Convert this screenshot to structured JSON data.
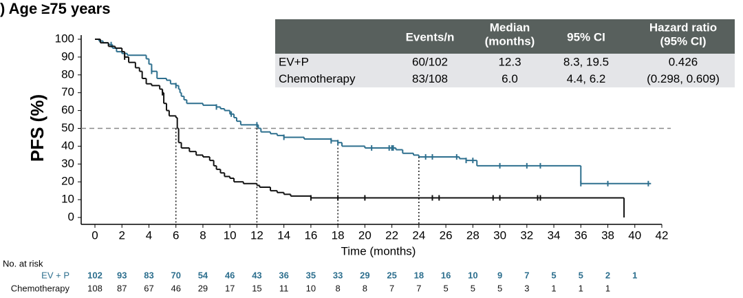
{
  "chart_data": {
    "type": "step",
    "title": ") Age ≥75 years",
    "ylabel": "PFS (%)",
    "xlabel": "Time (months)",
    "xlim": [
      0,
      42
    ],
    "ylim": [
      0,
      100
    ],
    "xticks": [
      0,
      2,
      4,
      6,
      8,
      10,
      12,
      14,
      16,
      18,
      20,
      22,
      24,
      26,
      28,
      30,
      32,
      34,
      36,
      38,
      40,
      42
    ],
    "yticks": [
      0,
      10,
      20,
      30,
      40,
      50,
      60,
      70,
      80,
      90,
      100
    ],
    "hline": 50,
    "vlines": [
      {
        "x": 6,
        "y": 50
      },
      {
        "x": 12,
        "y": 52
      },
      {
        "x": 18,
        "y": 43
      },
      {
        "x": 24,
        "y": 34
      }
    ],
    "series": [
      {
        "color": "#2d6f8e",
        "x": [
          0,
          0.3,
          0.6,
          1,
          1.3,
          1.6,
          2,
          2.4,
          3.8,
          4,
          4.2,
          4.6,
          5.3,
          5.6,
          6,
          6.2,
          6.3,
          6.4,
          6.6,
          6.8,
          8,
          9,
          9.3,
          9.6,
          10,
          10.3,
          10.5,
          10.8,
          12.1,
          12.3,
          13,
          13.5,
          14,
          15.5,
          17.5,
          18,
          18.3,
          20,
          22.3,
          22.8,
          23.6,
          24,
          27,
          27.5,
          28.3,
          36,
          41.2
        ],
        "values": [
          100,
          99,
          98,
          97,
          95,
          93,
          92,
          91,
          89,
          86,
          82,
          78,
          77,
          75,
          74,
          72,
          70,
          68,
          66,
          64,
          63,
          62,
          61,
          60,
          58,
          56,
          54,
          52,
          50,
          48,
          47,
          46,
          45,
          44,
          43,
          42,
          40,
          39,
          38,
          36,
          35,
          34,
          33,
          32,
          29,
          19,
          19
        ],
        "censor_x": [
          1.2,
          4.2,
          6,
          9,
          10.1,
          12,
          14,
          17.5,
          18,
          20.5,
          21.8,
          22,
          22.1,
          24.5,
          25,
          26.8,
          27.5,
          28,
          30,
          32,
          33,
          36,
          38,
          41
        ]
      },
      {
        "color": "#111111",
        "x": [
          0,
          0.4,
          1,
          1.5,
          2,
          2.2,
          2.5,
          3,
          3.3,
          3.5,
          3.8,
          4.2,
          4.8,
          5,
          5.1,
          5.3,
          5.5,
          6,
          6.1,
          6.2,
          6.4,
          7,
          7.5,
          8,
          8.5,
          8.8,
          9,
          9.3,
          9.6,
          10,
          10.3,
          11,
          12,
          12.2,
          13,
          13.5,
          14,
          14.5,
          16,
          39.2
        ],
        "values": [
          100,
          98,
          96,
          95,
          93,
          90,
          87,
          84,
          82,
          78,
          75,
          74,
          72,
          70,
          64,
          60,
          57,
          56,
          50,
          42,
          39,
          37,
          35,
          34,
          32,
          29,
          27,
          25,
          23,
          22,
          20,
          19,
          18,
          17,
          15,
          14,
          13,
          12,
          11,
          0
        ],
        "censor_x": [
          2.2,
          5,
          16,
          18,
          20,
          25,
          25.5,
          29.5,
          30,
          32.8,
          33
        ]
      }
    ],
    "risk_table": {
      "label": "No. at risk",
      "rows": [
        {
          "name": "EV + P",
          "color": "#2d6f8e",
          "x": [
            0,
            2,
            4,
            6,
            8,
            10,
            12,
            14,
            16,
            18,
            20,
            22,
            24,
            26,
            28,
            30,
            32,
            34,
            36,
            38,
            40
          ],
          "values": [
            102,
            93,
            83,
            70,
            54,
            46,
            43,
            36,
            35,
            33,
            29,
            25,
            18,
            16,
            10,
            9,
            7,
            5,
            5,
            2,
            1
          ]
        },
        {
          "name": "Chemotherapy",
          "color": "#111111",
          "x": [
            0,
            2,
            4,
            6,
            8,
            10,
            12,
            14,
            16,
            18,
            20,
            22,
            24,
            26,
            28,
            30,
            32,
            34,
            36,
            38
          ],
          "values": [
            108,
            87,
            67,
            46,
            29,
            17,
            15,
            11,
            10,
            8,
            8,
            7,
            7,
            5,
            5,
            5,
            3,
            1,
            1,
            1
          ]
        }
      ]
    },
    "summary_table": {
      "header": [
        [
          ""
        ],
        [
          "Events/n"
        ],
        [
          "Median",
          "(months)"
        ],
        [
          "95% CI"
        ],
        [
          "Hazard ratio",
          "(95% CI)"
        ]
      ],
      "rows": [
        [
          "EV+P",
          "60/102",
          "12.3",
          "8.3, 19.5",
          "0.426"
        ],
        [
          "Chemotherapy",
          "83/108",
          "6.0",
          "4.4, 6.2",
          "(0.298, 0.609)"
        ]
      ]
    }
  }
}
